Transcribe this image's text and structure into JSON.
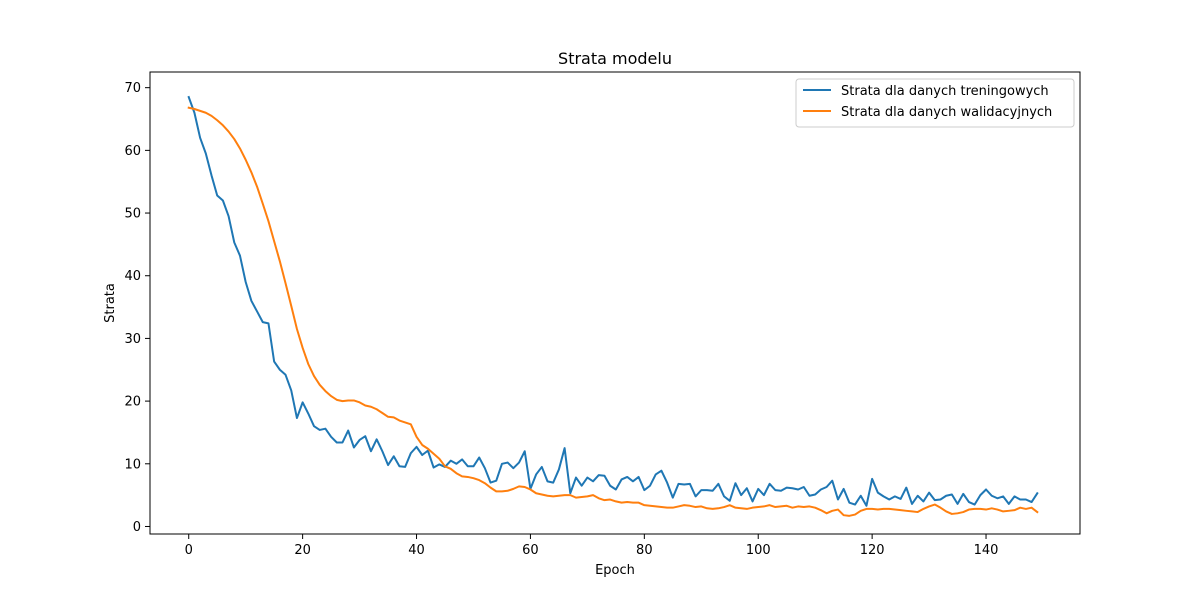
{
  "chart_data": {
    "type": "line",
    "title": "Strata modelu",
    "xlabel": "Epoch",
    "ylabel": "Strata",
    "xlim": [
      -6.8,
      156.5
    ],
    "ylim": [
      -1.2,
      72.5
    ],
    "xticks": [
      0,
      20,
      40,
      60,
      80,
      100,
      120,
      140
    ],
    "yticks": [
      0,
      10,
      20,
      30,
      40,
      50,
      60,
      70
    ],
    "grid": false,
    "legend_position": "upper right",
    "series": [
      {
        "name": "Strata dla danych treningowych",
        "color": "#1f77b4",
        "values": [
          68.5,
          66.0,
          62.0,
          59.5,
          56.0,
          52.8,
          52.0,
          49.5,
          45.3,
          43.2,
          39.0,
          36.0,
          34.3,
          32.6,
          32.4,
          26.3,
          25.0,
          24.2,
          21.7,
          17.3,
          19.8,
          18.0,
          16.0,
          15.4,
          15.6,
          14.3,
          13.4,
          13.4,
          15.3,
          12.6,
          13.8,
          14.4,
          12.0,
          13.9,
          12.0,
          9.8,
          11.2,
          9.6,
          9.5,
          11.7,
          12.7,
          11.4,
          12.1,
          9.4,
          9.9,
          9.5,
          10.5,
          10.0,
          10.7,
          9.6,
          9.6,
          11.0,
          9.3,
          7.0,
          7.3,
          10.0,
          10.2,
          9.3,
          10.2,
          12.0,
          6.0,
          8.3,
          9.5,
          7.2,
          7.0,
          9.1,
          12.5,
          5.3,
          7.8,
          6.5,
          7.8,
          7.2,
          8.2,
          8.1,
          6.5,
          5.9,
          7.5,
          7.9,
          7.2,
          7.9,
          5.8,
          6.5,
          8.3,
          8.9,
          7.0,
          4.6,
          6.8,
          6.7,
          6.8,
          4.8,
          5.8,
          5.8,
          5.7,
          6.8,
          4.8,
          4.1,
          6.9,
          5.0,
          6.1,
          4.0,
          6.0,
          5.0,
          6.8,
          5.8,
          5.7,
          6.2,
          6.1,
          5.9,
          6.3,
          4.9,
          5.1,
          5.9,
          6.3,
          7.3,
          4.3,
          6.0,
          3.8,
          3.5,
          4.9,
          3.3,
          7.6,
          5.4,
          4.8,
          4.3,
          4.8,
          4.4,
          6.2,
          3.6,
          4.9,
          4.0,
          5.4,
          4.2,
          4.3,
          4.9,
          5.1,
          3.6,
          5.2,
          3.9,
          3.5,
          5.0,
          5.9,
          4.9,
          4.5,
          4.8,
          3.6,
          4.8,
          4.3,
          4.3,
          3.9,
          5.3
        ]
      },
      {
        "name": "Strata dla danych walidacyjnych",
        "color": "#ff7f0e",
        "values": [
          66.8,
          66.6,
          66.3,
          66.0,
          65.5,
          64.8,
          64.0,
          63.0,
          61.8,
          60.3,
          58.5,
          56.5,
          54.2,
          51.5,
          48.7,
          45.5,
          42.3,
          38.8,
          35.2,
          31.5,
          28.5,
          25.9,
          24.0,
          22.6,
          21.6,
          20.8,
          20.2,
          20.0,
          20.1,
          20.1,
          19.8,
          19.3,
          19.1,
          18.7,
          18.1,
          17.5,
          17.4,
          16.9,
          16.6,
          16.3,
          14.3,
          13.0,
          12.4,
          11.6,
          10.8,
          9.6,
          9.2,
          8.5,
          8.0,
          7.9,
          7.7,
          7.4,
          6.9,
          6.2,
          5.6,
          5.6,
          5.7,
          6.0,
          6.4,
          6.3,
          5.9,
          5.3,
          5.1,
          4.9,
          4.8,
          4.9,
          5.0,
          5.0,
          4.6,
          4.7,
          4.8,
          5.0,
          4.5,
          4.2,
          4.3,
          4.0,
          3.8,
          3.9,
          3.8,
          3.8,
          3.4,
          3.3,
          3.2,
          3.1,
          3.0,
          3.0,
          3.2,
          3.4,
          3.3,
          3.1,
          3.2,
          2.9,
          2.8,
          2.9,
          3.1,
          3.4,
          3.0,
          2.9,
          2.8,
          3.0,
          3.1,
          3.2,
          3.4,
          3.1,
          3.2,
          3.3,
          3.0,
          3.2,
          3.1,
          3.2,
          3.0,
          2.6,
          2.1,
          2.5,
          2.7,
          1.8,
          1.7,
          1.9,
          2.5,
          2.8,
          2.8,
          2.7,
          2.8,
          2.8,
          2.7,
          2.6,
          2.5,
          2.4,
          2.3,
          2.8,
          3.2,
          3.5,
          3.0,
          2.4,
          2.0,
          2.1,
          2.3,
          2.7,
          2.8,
          2.8,
          2.7,
          2.9,
          2.7,
          2.4,
          2.5,
          2.6,
          3.0,
          2.8,
          3.0,
          2.3
        ]
      }
    ]
  }
}
